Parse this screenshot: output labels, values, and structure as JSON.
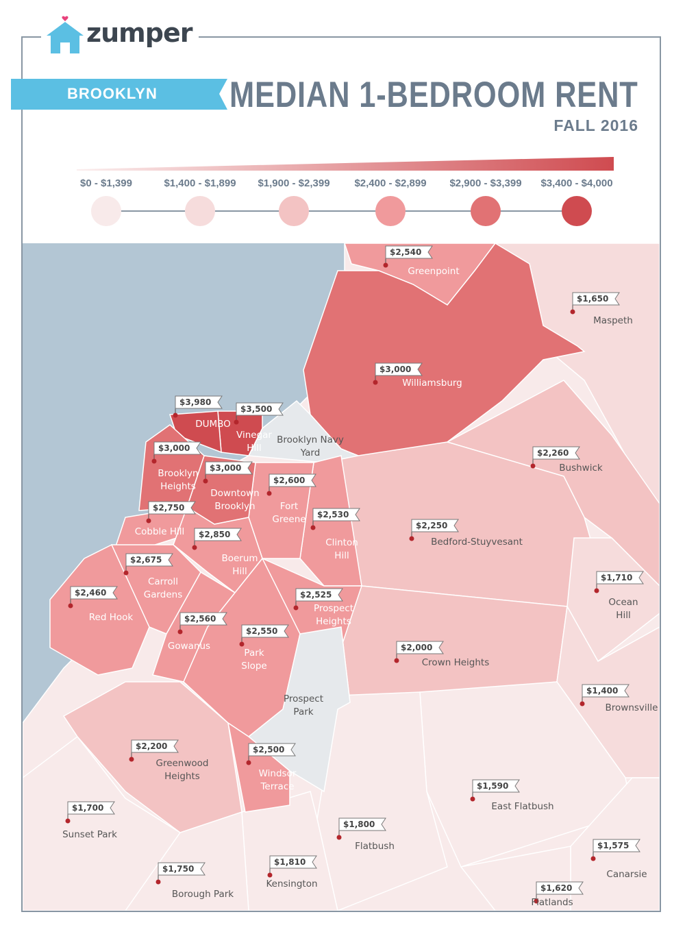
{
  "brand": {
    "name": "zumper"
  },
  "header": {
    "borough": "BROOKLYN",
    "title": "MEDIAN 1-BEDROOM RENT",
    "subtitle": "FALL 2016"
  },
  "colors": {
    "tier1": "#f8eaea",
    "tier2": "#f6dcdc",
    "tier3": "#f3c3c3",
    "tier4": "#f09a9c",
    "tier5": "#e17274",
    "tier6": "#cf4b50",
    "water": "#b3c6d4",
    "park": "#e6e9ec",
    "ribbon": "#5bbfe3",
    "text": "#6b7b8c"
  },
  "legend": [
    {
      "label": "$0 - $1,399",
      "tier": "tier1"
    },
    {
      "label": "$1,400 - $1,899",
      "tier": "tier2"
    },
    {
      "label": "$1,900 - $2,399",
      "tier": "tier3"
    },
    {
      "label": "$2,400 - $2,899",
      "tier": "tier4"
    },
    {
      "label": "$2,900 - $3,399",
      "tier": "tier5"
    },
    {
      "label": "$3,400 - $4,000",
      "tier": "tier6"
    }
  ],
  "neighborhoods": [
    {
      "id": "greenpoint",
      "name": "Greenpoint",
      "rent": "$2,540",
      "tier": "tier4"
    },
    {
      "id": "maspeth",
      "name": "Maspeth",
      "rent": "$1,650",
      "tier": "tier2"
    },
    {
      "id": "williamsburg",
      "name": "Williamsburg",
      "rent": "$3,000",
      "tier": "tier5"
    },
    {
      "id": "dumbo",
      "name": "DUMBO",
      "rent": "$3,980",
      "tier": "tier6"
    },
    {
      "id": "vinegar-hill",
      "name": "Vinegar Hill",
      "rent": "$3,500",
      "tier": "tier6"
    },
    {
      "id": "brooklyn-heights",
      "name": "Brooklyn Heights",
      "rent": "$3,000",
      "tier": "tier5"
    },
    {
      "id": "downtown-brooklyn",
      "name": "Downtown Brooklyn",
      "rent": "$3,000",
      "tier": "tier5"
    },
    {
      "id": "fort-greene",
      "name": "Fort Greene",
      "rent": "$2,600",
      "tier": "tier4"
    },
    {
      "id": "bushwick",
      "name": "Bushwick",
      "rent": "$2,260",
      "tier": "tier3"
    },
    {
      "id": "cobble-hill",
      "name": "Cobble Hill",
      "rent": "$2,750",
      "tier": "tier4"
    },
    {
      "id": "clinton-hill",
      "name": "Clinton Hill",
      "rent": "$2,530",
      "tier": "tier4"
    },
    {
      "id": "bed-stuy",
      "name": "Bedford-Stuyvesant",
      "rent": "$2,250",
      "tier": "tier3"
    },
    {
      "id": "boerum-hill",
      "name": "Boerum Hill",
      "rent": "$2,850",
      "tier": "tier4"
    },
    {
      "id": "carroll-gardens",
      "name": "Carroll Gardens",
      "rent": "$2,675",
      "tier": "tier4"
    },
    {
      "id": "ocean-hill",
      "name": "Ocean Hill",
      "rent": "$1,710",
      "tier": "tier2"
    },
    {
      "id": "red-hook",
      "name": "Red Hook",
      "rent": "$2,460",
      "tier": "tier4"
    },
    {
      "id": "prospect-heights",
      "name": "Prospect Heights",
      "rent": "$2,525",
      "tier": "tier4"
    },
    {
      "id": "gowanus",
      "name": "Gowanus",
      "rent": "$2,560",
      "tier": "tier4"
    },
    {
      "id": "park-slope",
      "name": "Park Slope",
      "rent": "$2,550",
      "tier": "tier4"
    },
    {
      "id": "crown-heights",
      "name": "Crown Heights",
      "rent": "$2,000",
      "tier": "tier3"
    },
    {
      "id": "brownsville",
      "name": "Brownsville",
      "rent": "$1,400",
      "tier": "tier2"
    },
    {
      "id": "greenwood-heights",
      "name": "Greenwood Heights",
      "rent": "$2,200",
      "tier": "tier3"
    },
    {
      "id": "windsor-terrace",
      "name": "Windsor Terrace",
      "rent": "$2,500",
      "tier": "tier4"
    },
    {
      "id": "east-flatbush",
      "name": "East Flatbush",
      "rent": "$1,590",
      "tier": "tier2"
    },
    {
      "id": "sunset-park",
      "name": "Sunset Park",
      "rent": "$1,700",
      "tier": "tier2"
    },
    {
      "id": "flatbush",
      "name": "Flatbush",
      "rent": "$1,800",
      "tier": "tier2"
    },
    {
      "id": "canarsie",
      "name": "Canarsie",
      "rent": "$1,575",
      "tier": "tier2"
    },
    {
      "id": "borough-park",
      "name": "Borough Park",
      "rent": "$1,750",
      "tier": "tier2"
    },
    {
      "id": "kensington",
      "name": "Kensington",
      "rent": "$1,810",
      "tier": "tier2"
    },
    {
      "id": "flatlands",
      "name": "Flatlands",
      "rent": "$1,620",
      "tier": "tier2"
    }
  ],
  "landmarks": [
    {
      "id": "navy-yard",
      "name": "Brooklyn Navy Yard"
    },
    {
      "id": "prospect-park",
      "name": "Prospect Park"
    }
  ]
}
